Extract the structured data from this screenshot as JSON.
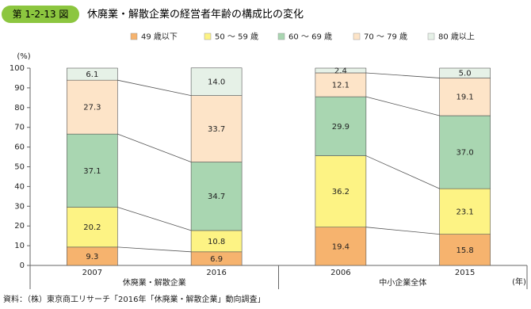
{
  "header": {
    "figure_number": "第 1-2-13 図",
    "title": "休廃業・解散企業の経営者年齢の構成比の変化"
  },
  "chart_data": {
    "type": "stacked-bar",
    "categories": [
      "2007",
      "2016",
      "2006",
      "2015"
    ],
    "group_labels": [
      "休廃業・解散企業",
      "中小企業全体"
    ],
    "xlabel": "(年)",
    "ylabel": "(%)",
    "ylim": [
      0,
      100
    ],
    "yticks": [
      0,
      10,
      20,
      30,
      40,
      50,
      60,
      70,
      80,
      90,
      100
    ],
    "series": [
      {
        "name": "49 歳以下",
        "color": "#f6b36e",
        "values": [
          9.3,
          6.9,
          19.4,
          15.8
        ],
        "value_labels": [
          "9.3",
          "6.9",
          "19.4",
          "15.8"
        ]
      },
      {
        "name": "50 ～ 59 歳",
        "color": "#fdf384",
        "values": [
          20.2,
          10.8,
          36.2,
          23.1
        ],
        "value_labels": [
          "20.2",
          "10.8",
          "36.2",
          "23.1"
        ]
      },
      {
        "name": "60 ～ 69 歳",
        "color": "#a9d6b1",
        "values": [
          37.1,
          34.7,
          29.9,
          37.0
        ],
        "value_labels": [
          "37.1",
          "34.7",
          "29.9",
          "37.0"
        ]
      },
      {
        "name": "70 ～ 79 歳",
        "color": "#fde4c8",
        "values": [
          27.3,
          33.7,
          12.1,
          19.1
        ],
        "value_labels": [
          "27.3",
          "33.7",
          "12.1",
          "19.1"
        ]
      },
      {
        "name": "80 歳以上",
        "color": "#e6f1e7",
        "values": [
          6.1,
          14.0,
          2.4,
          5.0
        ],
        "value_labels": [
          "6.1",
          "14.0",
          "2.4",
          "5.0"
        ]
      }
    ]
  },
  "source": "資料：（株）東京商工リサーチ「2016年「休廃業・解散企業」動向調査」"
}
